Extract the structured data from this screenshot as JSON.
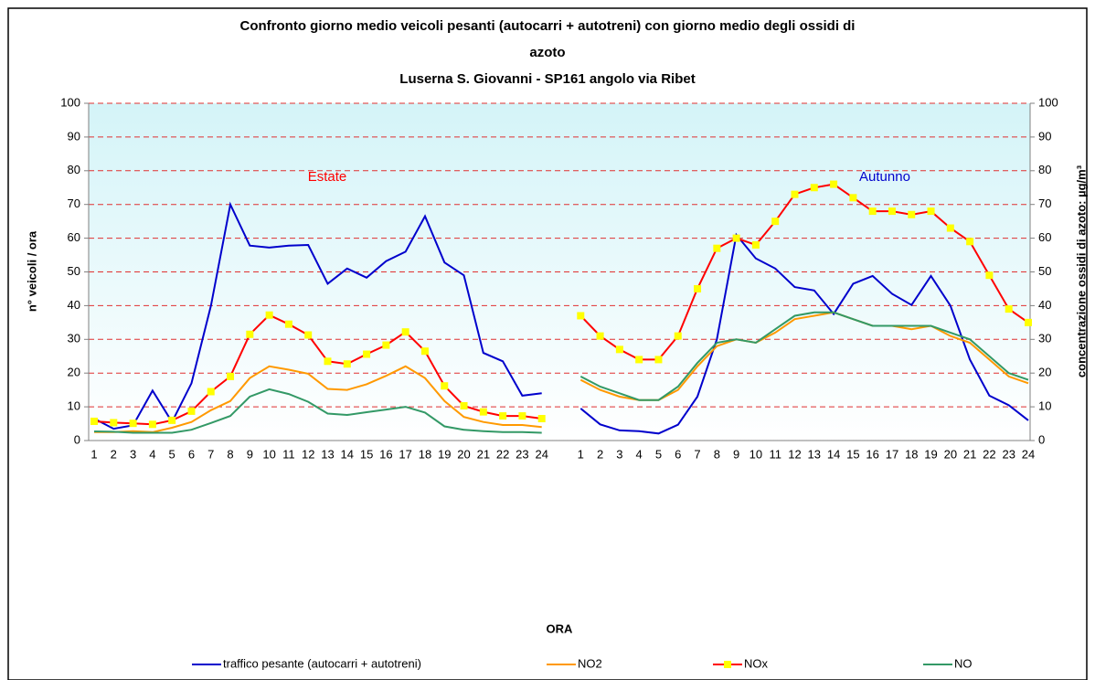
{
  "chart_data": {
    "type": "line",
    "title": [
      "Confronto giorno medio  veicoli pesanti (autocarri + autotreni) con giorno medio degli ossidi di",
      "azoto",
      "Luserna S. Giovanni - SP161 angolo via Ribet"
    ],
    "x_label": "ORA",
    "y_label": "n° veicoli / ora",
    "y2_label": "concentrazione ossidi di azoto: µg/m³",
    "annotations": [
      {
        "text": "Estate",
        "color": "#ff0000"
      },
      {
        "text": "Autunno",
        "color": "#0000cc"
      }
    ],
    "categories": [
      "1",
      "2",
      "3",
      "4",
      "5",
      "6",
      "7",
      "8",
      "9",
      "10",
      "11",
      "12",
      "13",
      "14",
      "15",
      "16",
      "17",
      "18",
      "19",
      "20",
      "21",
      "22",
      "23",
      "24",
      null,
      "1",
      "2",
      "3",
      "4",
      "5",
      "6",
      "7",
      "8",
      "9",
      "10",
      "11",
      "12",
      "13",
      "14",
      "15",
      "16",
      "17",
      "18",
      "19",
      "20",
      "21",
      "22",
      "23",
      "24"
    ],
    "ylim": [
      0,
      100
    ],
    "yticks": [
      0,
      10,
      20,
      30,
      40,
      50,
      60,
      70,
      80,
      90,
      100
    ],
    "y2lim": [
      0,
      100
    ],
    "y2ticks": [
      0,
      10,
      20,
      30,
      40,
      50,
      60,
      70,
      80,
      90,
      100
    ],
    "grid": true,
    "legend": "bottom",
    "series": [
      {
        "name": "traffico pesante (autocarri + autotreni)",
        "color": "#0000cc",
        "axis": "y",
        "values": [
          6.5,
          3.5,
          4.5,
          14.8,
          5.5,
          17,
          40,
          70,
          57.8,
          57.2,
          57.8,
          58,
          46.5,
          51,
          48.3,
          53.2,
          56,
          66.5,
          52.8,
          49,
          26,
          23.5,
          13.3,
          14,
          null,
          9.5,
          4.8,
          3,
          2.8,
          2.1,
          4.7,
          13,
          30,
          61,
          54,
          51,
          45.5,
          44.5,
          37.5,
          46.5,
          48.8,
          43.5,
          40.2,
          48.8,
          40,
          24,
          13.3,
          10.5,
          6
        ]
      },
      {
        "name": "NO2",
        "color": "#ff9900",
        "axis": "y2",
        "values": [
          2.5,
          2.5,
          2.8,
          2.5,
          3.8,
          5.5,
          9,
          11.7,
          18.5,
          22,
          21,
          19.8,
          15.3,
          15,
          16.7,
          19.2,
          22,
          18.5,
          11.7,
          7,
          5.5,
          4.6,
          4.6,
          4,
          null,
          18,
          15,
          13,
          12,
          12,
          15,
          22,
          28,
          30,
          29,
          32,
          36,
          37,
          38,
          36,
          34,
          34,
          33,
          34,
          31,
          29,
          24,
          19,
          17
        ]
      },
      {
        "name": "NOx",
        "color": "#ff0000",
        "marker_color": "#ffff00",
        "axis": "y2",
        "values": [
          5.7,
          5.3,
          5.1,
          4.8,
          6,
          8.7,
          14.5,
          19,
          31.5,
          37.2,
          34.5,
          31.3,
          23.5,
          22.7,
          25.6,
          28.3,
          32.2,
          26.5,
          16.2,
          10.3,
          8.5,
          7.3,
          7.3,
          6.5,
          null,
          37,
          31,
          27,
          24,
          24,
          31,
          45,
          57,
          60,
          58,
          65,
          73,
          75,
          76,
          72,
          68,
          68,
          67,
          68,
          63,
          59,
          49,
          39,
          35
        ]
      },
      {
        "name": "NO",
        "color": "#339966",
        "axis": "y2",
        "values": [
          2.7,
          2.6,
          2.3,
          2.3,
          2.3,
          3.2,
          5.2,
          7.3,
          13,
          15.2,
          13.8,
          11.5,
          8,
          7.6,
          8.4,
          9.2,
          10,
          8.3,
          4.2,
          3.2,
          2.8,
          2.5,
          2.5,
          2.3,
          null,
          19,
          16,
          14,
          12,
          12,
          16,
          23,
          29,
          30,
          29,
          33,
          37,
          38,
          38,
          36,
          34,
          34,
          34,
          34,
          32,
          30,
          25,
          20,
          18
        ]
      }
    ]
  }
}
